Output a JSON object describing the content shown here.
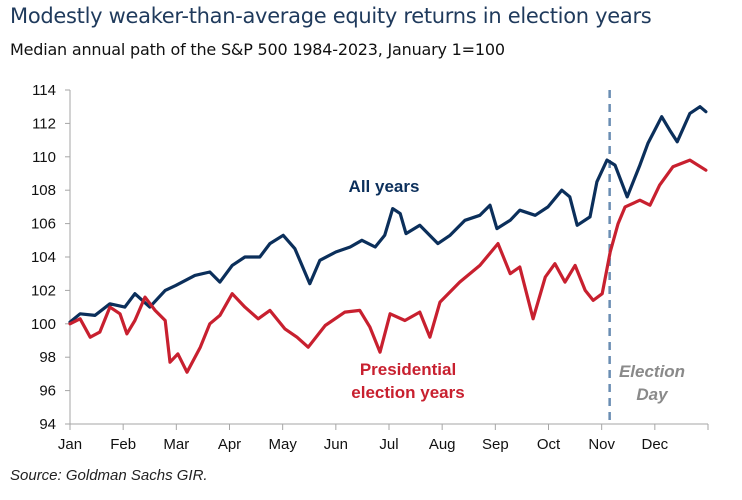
{
  "title": "Modestly weaker-than-average equity returns in election years",
  "subtitle": "Median annual path of the S&P 500 1984-2023, January 1=100",
  "source": "Source: Goldman Sachs GIR.",
  "chart_data": {
    "type": "line",
    "title": "Modestly weaker-than-average equity returns in election years",
    "subtitle": "Median annual path of the S&P 500 1984-2023, January 1=100",
    "x_unit": "months since January 1",
    "xlim": [
      0,
      12
    ],
    "ylim": [
      94,
      114
    ],
    "y_ticks": [
      94,
      96,
      98,
      100,
      102,
      104,
      106,
      108,
      110,
      112,
      114
    ],
    "x_tick_labels": [
      "Jan",
      "Feb",
      "Mar",
      "Apr",
      "May",
      "Jun",
      "Jul",
      "Aug",
      "Sep",
      "Oct",
      "Nov",
      "Dec"
    ],
    "grid": false,
    "legend": "inline labels",
    "series": [
      {
        "name": "All years",
        "color": "#0b2f5b",
        "x": [
          0,
          0.19,
          0.47,
          0.75,
          1.03,
          1.22,
          1.5,
          1.79,
          1.99,
          2.35,
          2.63,
          2.82,
          3.05,
          3.29,
          3.57,
          3.76,
          4.01,
          4.23,
          4.51,
          4.7,
          5.0,
          5.27,
          5.49,
          5.74,
          5.92,
          6.07,
          6.21,
          6.32,
          6.58,
          6.92,
          7.15,
          7.43,
          7.71,
          7.9,
          8.03,
          8.28,
          8.46,
          8.75,
          8.99,
          9.25,
          9.4,
          9.54,
          9.78,
          9.91,
          10.1,
          10.25,
          10.48,
          10.72,
          10.87,
          11.13,
          11.28,
          11.42,
          11.66,
          11.85,
          11.96
        ],
        "values": [
          100.1,
          100.6,
          100.5,
          101.2,
          101.0,
          101.8,
          101.0,
          102.0,
          102.3,
          102.9,
          103.1,
          102.5,
          103.5,
          104.0,
          104.0,
          104.8,
          105.3,
          104.5,
          102.4,
          103.8,
          104.3,
          104.6,
          105.0,
          104.6,
          105.3,
          106.9,
          106.6,
          105.4,
          105.9,
          104.8,
          105.3,
          106.2,
          106.5,
          107.1,
          105.7,
          106.2,
          106.8,
          106.5,
          107.0,
          108.0,
          107.6,
          105.9,
          106.4,
          108.5,
          109.8,
          109.5,
          107.6,
          109.5,
          110.8,
          112.4,
          111.6,
          110.9,
          112.6,
          113.0,
          112.7
        ]
      },
      {
        "name": "Presidential election years",
        "color": "#c8202f",
        "x": [
          0,
          0.19,
          0.38,
          0.56,
          0.75,
          0.94,
          1.07,
          1.22,
          1.41,
          1.6,
          1.79,
          1.88,
          2.03,
          2.2,
          2.45,
          2.63,
          2.82,
          3.05,
          3.29,
          3.54,
          3.76,
          4.04,
          4.27,
          4.48,
          4.8,
          5.17,
          5.45,
          5.64,
          5.83,
          6.02,
          6.3,
          6.58,
          6.77,
          6.96,
          7.33,
          7.71,
          8.05,
          8.28,
          8.46,
          8.71,
          8.94,
          9.12,
          9.31,
          9.5,
          9.69,
          9.84,
          10.01,
          10.16,
          10.31,
          10.44,
          10.72,
          10.91,
          11.09,
          11.34,
          11.66,
          11.96
        ],
        "values": [
          100.0,
          100.3,
          99.2,
          99.5,
          101.0,
          100.6,
          99.4,
          100.2,
          101.6,
          100.8,
          100.2,
          97.7,
          98.2,
          97.1,
          98.6,
          100.0,
          100.5,
          101.8,
          101.0,
          100.3,
          100.8,
          99.7,
          99.2,
          98.6,
          99.9,
          100.7,
          100.8,
          99.8,
          98.3,
          100.6,
          100.2,
          100.7,
          99.2,
          101.3,
          102.5,
          103.5,
          104.8,
          103.0,
          103.4,
          100.3,
          102.8,
          103.6,
          102.5,
          103.5,
          102.0,
          101.4,
          101.8,
          104.3,
          106.0,
          107.0,
          107.4,
          107.1,
          108.3,
          109.4,
          109.8,
          109.2
        ]
      }
    ],
    "annotations": {
      "all_years_label": "All years",
      "election_label_line1": "Presidential",
      "election_label_line2": "election years",
      "election_day_line1": "Election",
      "election_day_line2": "Day",
      "election_day_x": 10.15,
      "election_day_color": "#6a8db3",
      "annotation_gray": "#8a8a8a"
    }
  }
}
